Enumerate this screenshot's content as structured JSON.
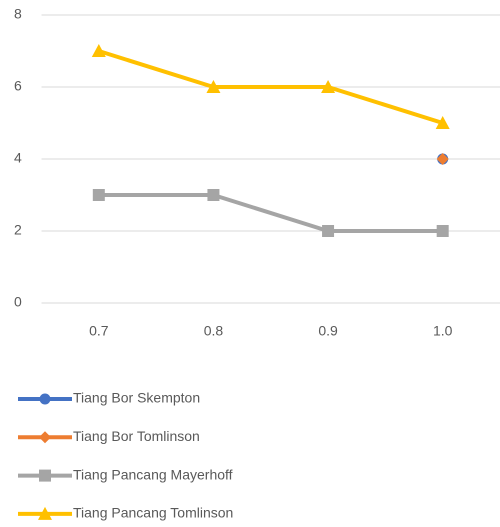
{
  "chart_data": {
    "type": "line",
    "categories": [
      "0.7",
      "0.8",
      "0.9",
      "1.0"
    ],
    "series": [
      {
        "name": "Tiang Bor Skempton",
        "color": "#4472c4",
        "marker": "circle",
        "values": [
          null,
          null,
          null,
          4
        ]
      },
      {
        "name": "Tiang Bor Tomlinson",
        "color": "#ed7d31",
        "marker": "diamond",
        "values": [
          null,
          null,
          null,
          4
        ]
      },
      {
        "name": "Tiang Pancang Mayerhoff",
        "color": "#a5a5a5",
        "marker": "square",
        "values": [
          3,
          3,
          2,
          2
        ]
      },
      {
        "name": "Tiang Pancang Tomlinson",
        "color": "#ffc000",
        "marker": "triangle",
        "values": [
          7,
          6,
          6,
          5
        ]
      }
    ],
    "ylim": [
      0,
      8
    ],
    "yticks": [
      0,
      2,
      4,
      6,
      8
    ],
    "grid": true,
    "legend": "bottom"
  }
}
